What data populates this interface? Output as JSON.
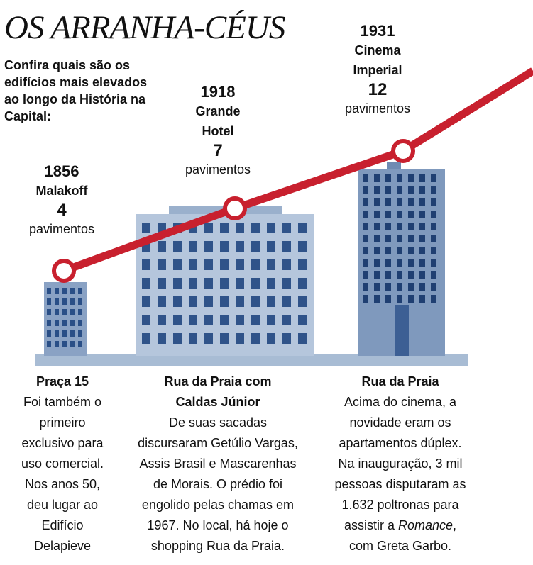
{
  "title": "OS ARRANHA-CÉUS",
  "subtitle": "Confira quais são os edifícios mais elevados ao longo da História na Capital:",
  "colors": {
    "line": "#c8202e",
    "building": "#7f99bd",
    "window": "#2a4f87",
    "ground": "#a8bcd4"
  },
  "milestones": [
    {
      "year": "1856",
      "name_lines": [
        "Malakoff"
      ],
      "count": "4",
      "unit": "pavimentos",
      "location": "Praça 15",
      "description_lines": [
        "Foi também o",
        "primeiro",
        "exclusivo para",
        "uso comercial.",
        "Nos anos 50,",
        "deu lugar ao",
        "Edifício",
        "Delapieve"
      ]
    },
    {
      "year": "1918",
      "name_lines": [
        "Grande",
        "Hotel"
      ],
      "count": "7",
      "unit": "pavimentos",
      "location_lines": [
        "Rua da Praia com",
        "Caldas Júnior"
      ],
      "description_lines": [
        "De suas sacadas",
        "discursaram Getúlio Vargas,",
        "Assis Brasil e Mascarenhas",
        "de Morais. O prédio foi",
        "engolido pelas chamas em",
        "1967. No local, há hoje o",
        "shopping Rua da Praia."
      ]
    },
    {
      "year": "1931",
      "name_lines": [
        "Cinema",
        "Imperial"
      ],
      "count": "12",
      "unit": "pavimentos",
      "location": "Rua da Praia",
      "description_lines": [
        "Acima do cinema, a",
        "novidade eram os",
        "apartamentos dúplex.",
        "Na inauguração, 3 mil",
        "pessoas disputaram as",
        "1.632 poltronas para"
      ],
      "description_tail_prefix": "assistir a ",
      "description_tail_italic": "Romance",
      "description_tail_suffix": ",",
      "description_last": "com Greta Garbo."
    }
  ]
}
